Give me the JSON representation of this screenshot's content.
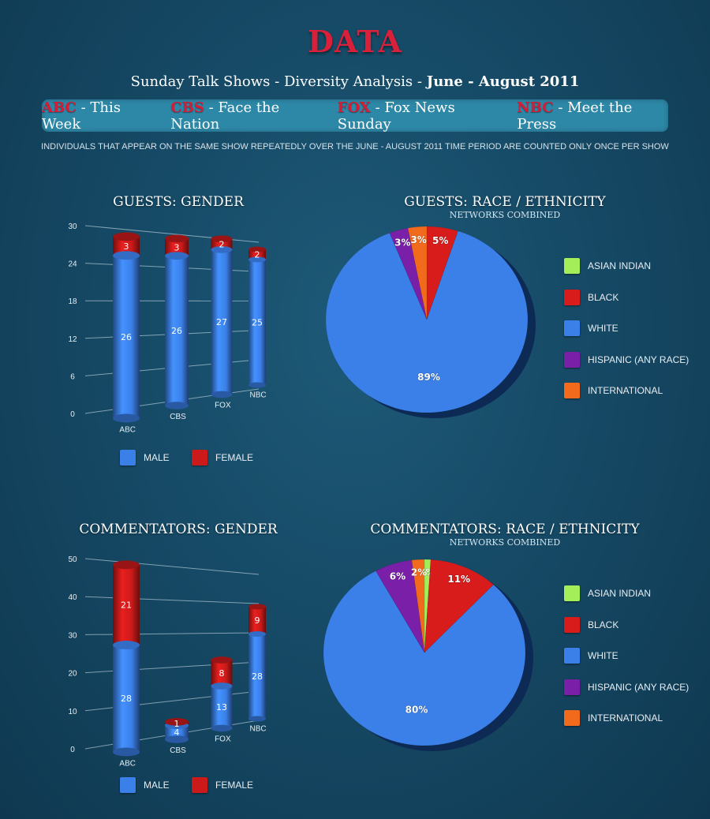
{
  "header": {
    "title": "DATA",
    "subtitle_plain": "Sunday Talk Shows - Diversity Analysis - ",
    "subtitle_bold": "June - August 2011",
    "shows": [
      {
        "network": "ABC",
        "show": " - This Week"
      },
      {
        "network": "CBS",
        "show": " - Face the Nation"
      },
      {
        "network": "FOX",
        "show": " - Fox News Sunday"
      },
      {
        "network": "NBC",
        "show": " - Meet the Press"
      }
    ],
    "note": "INDIVIDUALS THAT APPEAR ON THE SAME SHOW REPEATEDLY OVER THE JUNE - AUGUST 2011 TIME PERIOD ARE COUNTED ONLY ONCE PER SHOW"
  },
  "colors": {
    "male": "#3b7fe8",
    "female": "#cc1a1a",
    "asian_indian": "#a4ee5a",
    "black": "#d81c1c",
    "white": "#3b7fe8",
    "hispanic": "#7a1fa8",
    "international": "#f26b1d"
  },
  "chart_data": [
    {
      "type": "bar",
      "stacked": true,
      "title": "GUESTS: GENDER",
      "categories": [
        "ABC",
        "CBS",
        "FOX",
        "NBC"
      ],
      "series": [
        {
          "name": "MALE",
          "values": [
            26,
            26,
            27,
            25
          ]
        },
        {
          "name": "FEMALE",
          "values": [
            3,
            3,
            2,
            2
          ]
        }
      ],
      "yticks": [
        "0",
        "6",
        "12",
        "18",
        "24",
        "30"
      ],
      "ylim": [
        0,
        30
      ],
      "grid": true,
      "legend": "bottom"
    },
    {
      "type": "pie",
      "title": "GUESTS: RACE / ETHNICITY",
      "subtitle": "NETWORKS COMBINED",
      "slices": [
        {
          "name": "ASIAN INDIAN",
          "value": 0,
          "label": ""
        },
        {
          "name": "BLACK",
          "value": 5,
          "label": "5%"
        },
        {
          "name": "WHITE",
          "value": 89,
          "label": "89%"
        },
        {
          "name": "HISPANIC (ANY RACE)",
          "value": 3,
          "label": "3%"
        },
        {
          "name": "INTERNATIONAL",
          "value": 3,
          "label": "3%"
        }
      ],
      "legend": "right"
    },
    {
      "type": "bar",
      "stacked": true,
      "title": "COMMENTATORS: GENDER",
      "categories": [
        "ABC",
        "CBS",
        "FOX",
        "NBC"
      ],
      "series": [
        {
          "name": "MALE",
          "values": [
            28,
            4,
            13,
            28
          ]
        },
        {
          "name": "FEMALE",
          "values": [
            21,
            1,
            8,
            9
          ]
        }
      ],
      "yticks": [
        "0",
        "10",
        "20",
        "30",
        "40",
        "50"
      ],
      "ylim": [
        0,
        50
      ],
      "grid": true,
      "legend": "bottom"
    },
    {
      "type": "pie",
      "title": "COMMENTATORS: RACE / ETHNICITY",
      "subtitle": "NETWORKS COMBINED",
      "slices": [
        {
          "name": "ASIAN INDIAN",
          "value": 1,
          "label": "1%"
        },
        {
          "name": "BLACK",
          "value": 11,
          "label": "11%"
        },
        {
          "name": "WHITE",
          "value": 80,
          "label": "80%"
        },
        {
          "name": "HISPANIC (ANY RACE)",
          "value": 6,
          "label": "6%"
        },
        {
          "name": "INTERNATIONAL",
          "value": 2,
          "label": "2%"
        }
      ],
      "legend": "right"
    }
  ]
}
